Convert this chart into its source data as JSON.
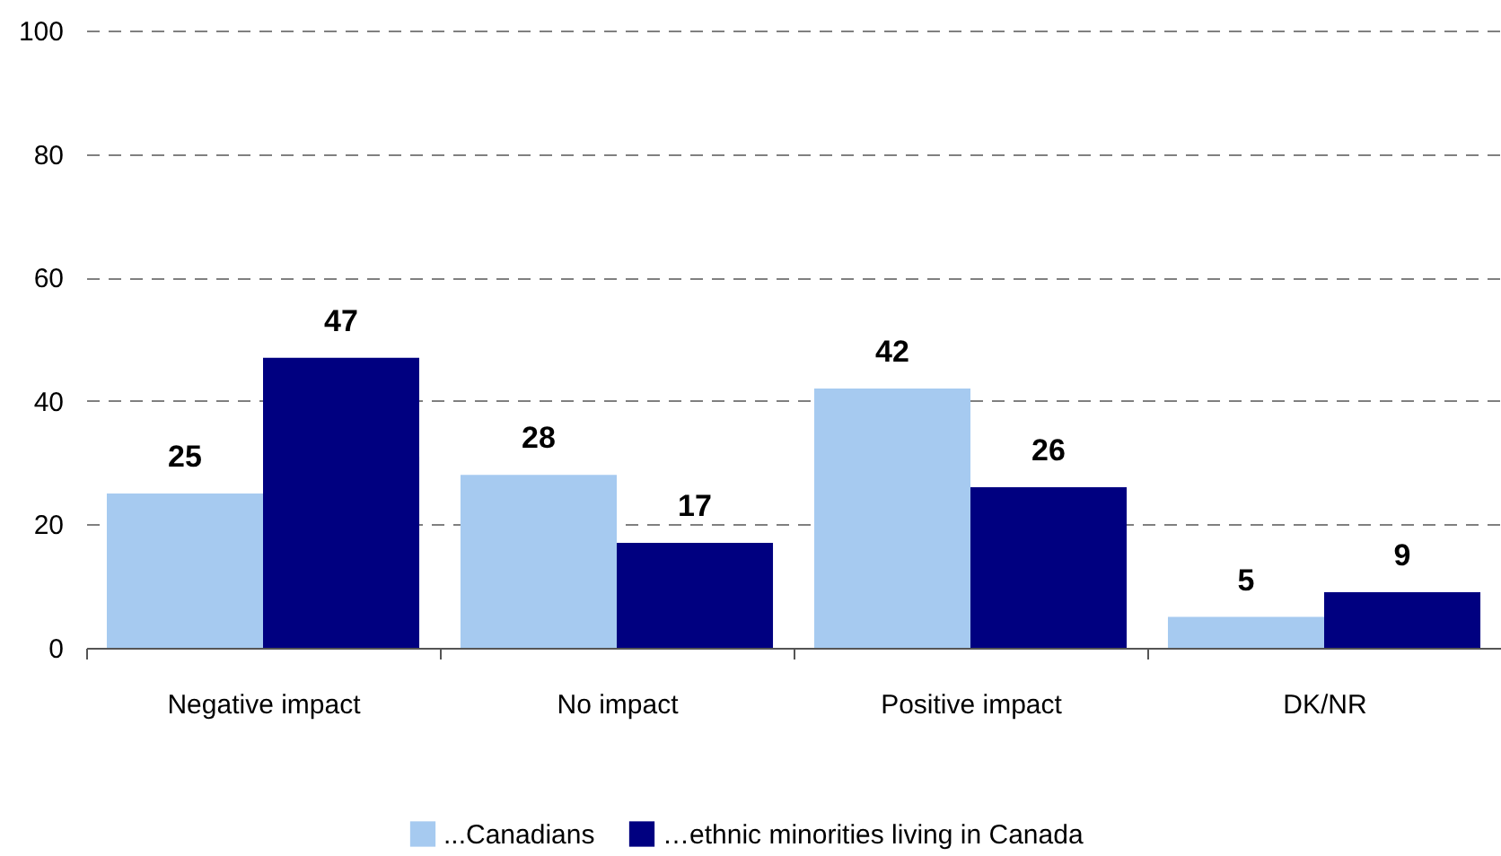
{
  "chart_data": {
    "type": "bar",
    "categories": [
      "Negative impact",
      "No impact",
      "Positive impact",
      "DK/NR"
    ],
    "series": [
      {
        "name": "...Canadians",
        "color": "#a6caf0",
        "values": [
          25,
          28,
          42,
          5
        ]
      },
      {
        "name": "…ethnic minorities living in Canada",
        "color": "#000080",
        "values": [
          47,
          17,
          26,
          9
        ]
      }
    ],
    "ylim": [
      0,
      100
    ],
    "yticks": [
      0,
      20,
      40,
      60,
      80,
      100
    ],
    "grid": "y",
    "legend": "bottom",
    "data_labels": true
  }
}
